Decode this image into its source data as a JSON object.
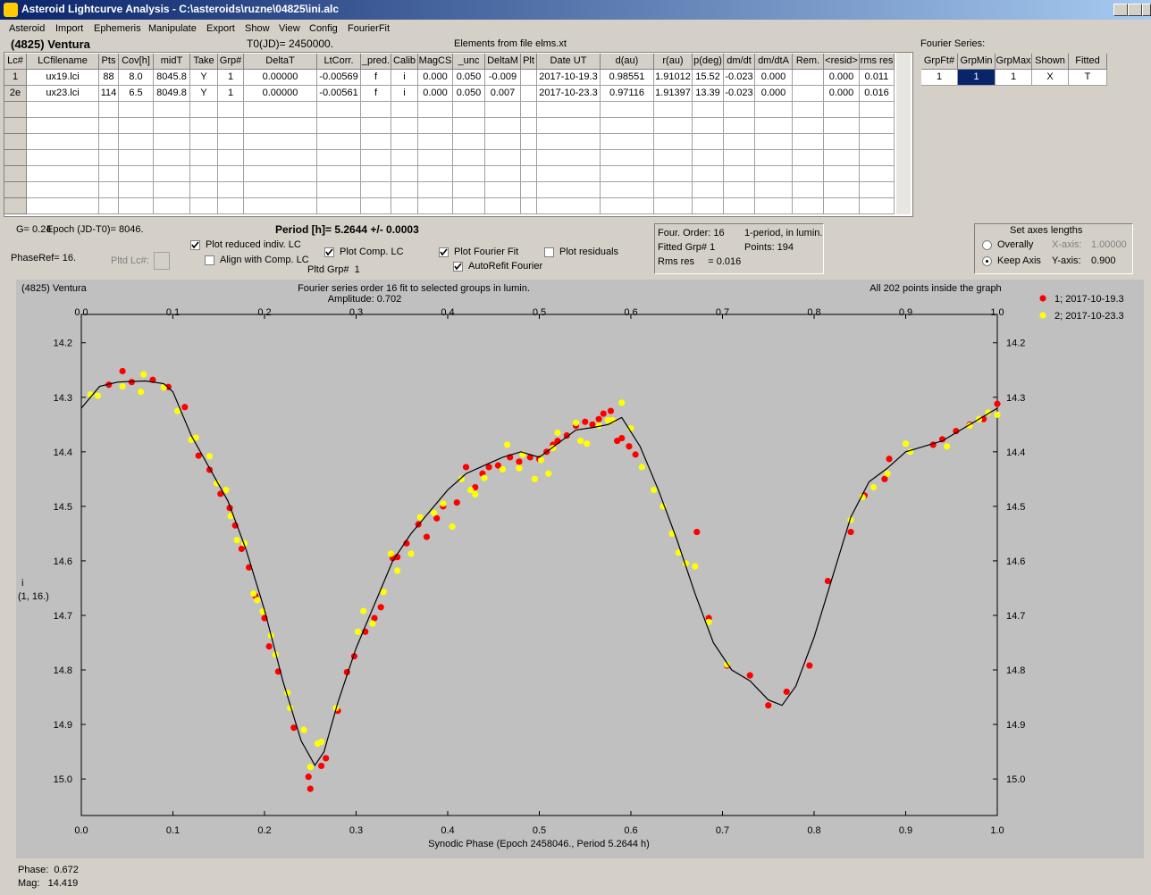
{
  "window": {
    "title": "Asteroid Lightcurve Analysis - C:\\asteroids\\ruzne\\04825\\ini.alc"
  },
  "menu": [
    "Asteroid",
    "Import",
    "Ephemeris",
    "Manipulate",
    "Export",
    "Show",
    "View",
    "Config",
    "FourierFit"
  ],
  "header": {
    "object": "(4825) Ventura",
    "t0": "T0(JD)= 2450000.",
    "elements": "Elements from file elms.xt"
  },
  "table": {
    "columns": [
      "Lc#",
      "LCfilename",
      "Pts",
      "Cov[h]",
      "midT",
      "Take",
      "Grp#",
      "DeltaT",
      "LtCorr.",
      "_pred.",
      "Calib",
      "MagCS",
      "_unc",
      "DeltaM",
      "Plt",
      "Date UT",
      "d(au)",
      "r(au)",
      "p(deg)",
      "dm/dt",
      "dm/dtA",
      "Rem.",
      "<resid>",
      "rms res"
    ],
    "rows": [
      [
        "1",
        "ux19.lci",
        "88",
        "8.0",
        "8045.8",
        "Y",
        "1",
        "0.00000",
        "-0.00569",
        "f",
        "i",
        "0.000",
        "0.050",
        "-0.009",
        null,
        "2017-10-19.3",
        "0.98551",
        "1.91012",
        "15.52",
        "-0.023",
        "0.000",
        null,
        "0.000",
        "0.011"
      ],
      [
        "2e",
        "ux23.lci",
        "114",
        "6.5",
        "8049.8",
        "Y",
        "1",
        "0.00000",
        "-0.00561",
        "f",
        "i",
        "0.000",
        "0.050",
        "0.007",
        null,
        "2017-10-23.3",
        "0.97116",
        "1.91397",
        "13.39",
        "-0.023",
        "0.000",
        null,
        "0.000",
        "0.016"
      ]
    ]
  },
  "fourier_table": {
    "label": "Fourier Series:",
    "columns": [
      "GrpFt#",
      "GrpMin",
      "GrpMax",
      "Shown",
      "Fitted"
    ],
    "rows": [
      [
        "1",
        "1",
        "1",
        "X",
        "T"
      ]
    ]
  },
  "controls": {
    "g": "G= 0.24",
    "epoch": "Epoch (JD-T0)= 8046.",
    "period": "Period [h]= 5.2644 +/- 0.0003",
    "phase_ref": "PhaseRef= 16.",
    "pltd_lc": "Pltd Lc#:",
    "pltd_grp": "Pltd Grp#  1",
    "checkboxes": [
      {
        "label": "Plot reduced indiv. LC",
        "checked": true
      },
      {
        "label": "Align with Comp. LC",
        "checked": false
      },
      {
        "label": "Plot Comp. LC",
        "checked": true
      },
      {
        "label": "Plot Fourier Fit",
        "checked": true
      },
      {
        "label": "AutoRefit Fourier",
        "checked": true
      },
      {
        "label": "Plot residuals",
        "checked": false
      }
    ]
  },
  "info_box": {
    "order": "Four. Order: 16",
    "mode": "1-period, in lumin.",
    "fitted": "Fitted Grp# 1",
    "points": "Points: 194",
    "rms": "Rms res     = 0.016"
  },
  "axes_box": {
    "title": "Set axes lengths",
    "radios": [
      {
        "label": "Overally",
        "checked": false
      },
      {
        "label": "Keep Axis",
        "checked": true
      }
    ],
    "x_axis_label": "X-axis:",
    "x_axis_value": "1.00000",
    "y_axis_label": "Y-axis:",
    "y_axis_value": "0.900"
  },
  "chart_data": {
    "type": "scatter",
    "object": "(4825) Ventura",
    "subtitle": "Fourier series order 16 fit to selected groups in lumin.",
    "amplitude": "Amplitude: 0.702",
    "note": "All 202 points inside the graph",
    "xlabel": "Synodic Phase (Epoch 2458046., Period 5.2644 h)",
    "ylabel": "i",
    "ylabel2": "(1, 16.)",
    "xlim": [
      0,
      1
    ],
    "ylim": [
      14.148,
      15.067
    ],
    "y_inverted": true,
    "xticks": [
      {
        "value": 0,
        "label": "0.0"
      },
      0.1,
      0.2,
      0.3,
      0.4,
      0.5,
      0.6,
      0.7,
      0.8,
      0.9,
      {
        "value": 1,
        "label": "1.0"
      }
    ],
    "yticks": [
      14.2,
      14.3,
      14.4,
      14.5,
      14.6,
      14.7,
      14.8,
      14.9,
      {
        "value": 15,
        "label": "15.0"
      }
    ],
    "legend": "right",
    "series": [
      {
        "name": "1; 2017-10-19.3",
        "color": "#ff0000",
        "x": [
          0.03,
          0.045,
          0.055,
          0.078,
          0.095,
          0.113,
          0.128,
          0.14,
          0.152,
          0.162,
          0.168,
          0.175,
          0.183,
          0.19,
          0.2,
          0.205,
          0.215,
          0.232,
          0.248,
          0.25,
          0.262,
          0.267,
          0.28,
          0.29,
          0.298,
          0.31,
          0.32,
          0.327,
          0.34,
          0.345,
          0.355,
          0.368,
          0.377,
          0.388,
          0.395,
          0.41,
          0.42,
          0.43,
          0.438,
          0.445,
          0.455,
          0.468,
          0.478,
          0.49,
          0.5,
          0.508,
          0.515,
          0.52,
          0.53,
          0.54,
          0.55,
          0.558,
          0.565,
          0.57,
          0.578,
          0.585,
          0.59,
          0.598,
          0.605,
          0.672,
          0.685,
          0.705,
          0.73,
          0.75,
          0.77,
          0.795,
          0.815,
          0.84,
          0.855,
          0.877,
          0.882,
          0.93,
          0.94,
          0.955,
          0.97,
          0.985,
          1.0
        ],
        "values": [
          14.277,
          14.252,
          14.272,
          14.268,
          14.281,
          14.318,
          14.407,
          14.433,
          14.477,
          14.503,
          14.535,
          14.578,
          14.612,
          14.664,
          14.705,
          14.757,
          14.803,
          14.906,
          14.996,
          15.018,
          14.976,
          14.962,
          14.875,
          14.804,
          14.775,
          14.73,
          14.705,
          14.685,
          14.595,
          14.593,
          14.568,
          14.533,
          14.556,
          14.522,
          14.5,
          14.493,
          14.428,
          14.465,
          14.44,
          14.428,
          14.425,
          14.41,
          14.418,
          14.41,
          14.413,
          14.4,
          14.387,
          14.38,
          14.37,
          14.352,
          14.345,
          14.35,
          14.34,
          14.33,
          14.325,
          14.38,
          14.375,
          14.39,
          14.405,
          14.547,
          14.705,
          14.792,
          14.81,
          14.865,
          14.84,
          14.792,
          14.637,
          14.547,
          14.48,
          14.45,
          14.413,
          14.387,
          14.377,
          14.362,
          14.35,
          14.34,
          14.312
        ]
      },
      {
        "name": "2; 2017-10-23.3",
        "color": "#ffff00",
        "x": [
          0.01,
          0.018,
          0.045,
          0.065,
          0.068,
          0.09,
          0.105,
          0.12,
          0.125,
          0.14,
          0.148,
          0.158,
          0.163,
          0.17,
          0.178,
          0.188,
          0.192,
          0.198,
          0.207,
          0.212,
          0.225,
          0.228,
          0.243,
          0.25,
          0.258,
          0.262,
          0.278,
          0.302,
          0.308,
          0.318,
          0.33,
          0.338,
          0.345,
          0.36,
          0.37,
          0.385,
          0.395,
          0.405,
          0.415,
          0.425,
          0.43,
          0.44,
          0.46,
          0.465,
          0.478,
          0.482,
          0.495,
          0.502,
          0.51,
          0.515,
          0.52,
          0.54,
          0.545,
          0.552,
          0.565,
          0.575,
          0.58,
          0.59,
          0.6,
          0.612,
          0.625,
          0.635,
          0.645,
          0.652,
          0.66,
          0.67,
          0.685,
          0.705,
          0.84,
          0.853,
          0.865,
          0.88,
          0.9,
          0.905,
          0.945,
          0.97,
          0.98,
          0.99,
          1.0
        ],
        "values": [
          14.295,
          14.297,
          14.28,
          14.29,
          14.258,
          14.282,
          14.325,
          14.378,
          14.374,
          14.408,
          14.458,
          14.47,
          14.518,
          14.562,
          14.568,
          14.66,
          14.672,
          14.693,
          14.737,
          14.772,
          14.842,
          14.87,
          14.91,
          14.978,
          14.935,
          14.932,
          14.87,
          14.73,
          14.692,
          14.715,
          14.657,
          14.587,
          14.618,
          14.587,
          14.52,
          14.512,
          14.495,
          14.537,
          14.45,
          14.47,
          14.478,
          14.448,
          14.432,
          14.387,
          14.43,
          14.405,
          14.45,
          14.415,
          14.44,
          14.393,
          14.365,
          14.347,
          14.38,
          14.385,
          14.352,
          14.342,
          14.342,
          14.31,
          14.357,
          14.428,
          14.47,
          14.5,
          14.55,
          14.585,
          14.605,
          14.61,
          14.712,
          14.79,
          14.525,
          14.483,
          14.465,
          14.44,
          14.385,
          14.4,
          14.39,
          14.352,
          14.34,
          14.328,
          14.332
        ]
      }
    ],
    "fit": {
      "color": "#000000",
      "x": [
        0,
        0.02,
        0.04,
        0.07,
        0.09,
        0.1,
        0.12,
        0.14,
        0.16,
        0.18,
        0.2,
        0.22,
        0.24,
        0.255,
        0.265,
        0.28,
        0.3,
        0.32,
        0.34,
        0.36,
        0.38,
        0.4,
        0.42,
        0.44,
        0.46,
        0.48,
        0.5,
        0.52,
        0.54,
        0.56,
        0.575,
        0.59,
        0.61,
        0.63,
        0.65,
        0.67,
        0.69,
        0.71,
        0.73,
        0.75,
        0.765,
        0.78,
        0.8,
        0.82,
        0.84,
        0.86,
        0.88,
        0.9,
        0.92,
        0.94,
        0.96,
        0.98,
        1.0
      ],
      "values": [
        14.32,
        14.28,
        14.272,
        14.27,
        14.275,
        14.29,
        14.37,
        14.43,
        14.49,
        14.58,
        14.69,
        14.82,
        14.93,
        14.975,
        14.95,
        14.86,
        14.76,
        14.68,
        14.6,
        14.55,
        14.51,
        14.47,
        14.44,
        14.425,
        14.41,
        14.4,
        14.41,
        14.385,
        14.36,
        14.355,
        14.35,
        14.337,
        14.39,
        14.47,
        14.56,
        14.66,
        14.75,
        14.8,
        14.82,
        14.855,
        14.865,
        14.83,
        14.74,
        14.63,
        14.52,
        14.455,
        14.43,
        14.4,
        14.39,
        14.38,
        14.36,
        14.34,
        14.32
      ]
    }
  },
  "status": {
    "phase": "Phase:  0.672",
    "mag": "Mag:   14.419"
  }
}
